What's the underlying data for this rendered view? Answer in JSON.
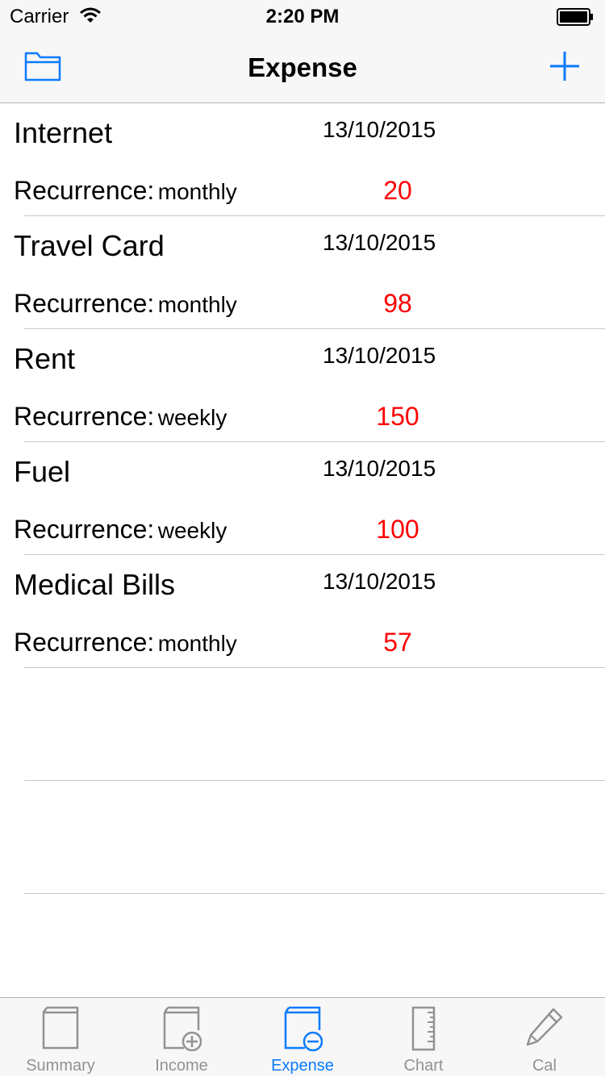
{
  "status_bar": {
    "carrier": "Carrier",
    "time": "2:20 PM",
    "wifi_icon": "wifi-icon",
    "battery_icon": "battery-icon"
  },
  "nav": {
    "title": "Expense",
    "left_icon": "folder-icon",
    "right_icon": "plus-icon",
    "accent_color": "#0a7aff"
  },
  "expenses": [
    {
      "name": "Internet",
      "date": "13/10/2015",
      "recurrence_label": "Recurrence:",
      "recurrence": "monthly",
      "amount": "20"
    },
    {
      "name": "Travel Card",
      "date": "13/10/2015",
      "recurrence_label": "Recurrence:",
      "recurrence": "monthly",
      "amount": "98"
    },
    {
      "name": "Rent",
      "date": "13/10/2015",
      "recurrence_label": "Recurrence:",
      "recurrence": "weekly",
      "amount": "150"
    },
    {
      "name": "Fuel",
      "date": "13/10/2015",
      "recurrence_label": "Recurrence:",
      "recurrence": "weekly",
      "amount": "100"
    },
    {
      "name": "Medical Bills",
      "date": "13/10/2015",
      "recurrence_label": "Recurrence:",
      "recurrence": "monthly",
      "amount": "57"
    }
  ],
  "amount_color": "#ff0000",
  "tabs": [
    {
      "label": "Summary",
      "icon": "book-icon",
      "active": false
    },
    {
      "label": "Income",
      "icon": "book-plus-icon",
      "active": false
    },
    {
      "label": "Expense",
      "icon": "book-minus-icon",
      "active": true
    },
    {
      "label": "Chart",
      "icon": "ruler-icon",
      "active": false
    },
    {
      "label": "Cal",
      "icon": "pencil-icon",
      "active": false
    }
  ]
}
